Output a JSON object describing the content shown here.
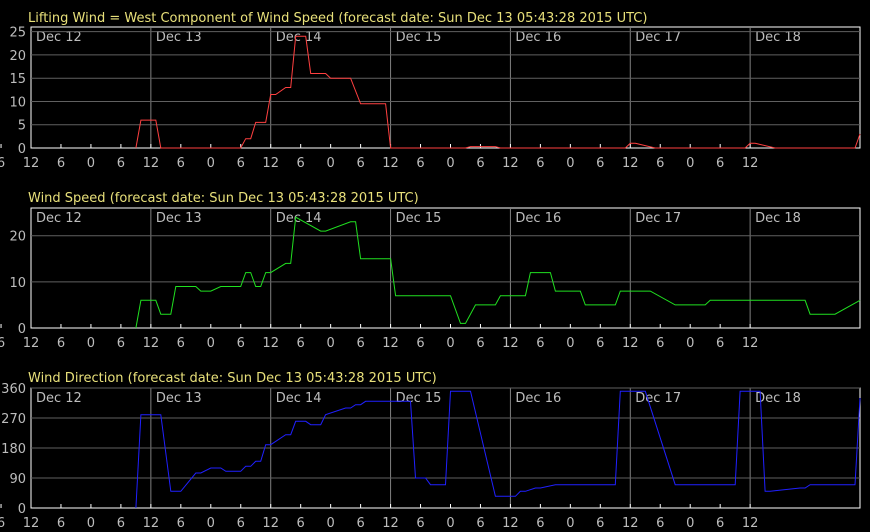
{
  "chart_data": [
    {
      "type": "line",
      "title": "Lifting Wind = West Component of Wind Speed (forecast date: Sun Dec 13 05:43:28 2015 UTC)",
      "color": "#ff4040",
      "ylim": [
        0,
        26
      ],
      "yticks": [
        0,
        5,
        10,
        15,
        20,
        25
      ],
      "xlim": [
        0,
        166
      ],
      "day_labels": [
        "Dec 12",
        "Dec 13",
        "Dec 14",
        "Dec 15",
        "Dec 16",
        "Dec 17",
        "Dec 18"
      ],
      "day_starts": [
        0,
        24,
        48,
        72,
        96,
        120,
        144
      ],
      "x_tick_labels": [
        "6",
        "0",
        "6",
        "12",
        "6",
        "0",
        "6",
        "12",
        "6",
        "0",
        "6",
        "12",
        "6",
        "0",
        "6",
        "12",
        "6",
        "0",
        "6",
        "12",
        "6",
        "0",
        "6",
        "12",
        "6",
        "0",
        "6",
        "12"
      ],
      "x": [
        21,
        22,
        23,
        25,
        26,
        42,
        43,
        44,
        45,
        47,
        48,
        49,
        51,
        52,
        53,
        55,
        56,
        57,
        59,
        60,
        63,
        64,
        66,
        67,
        71,
        72,
        73,
        87,
        88,
        89,
        93,
        94,
        95,
        119,
        120,
        121,
        125,
        126,
        127,
        143,
        144,
        145,
        149,
        150,
        151,
        165,
        166
      ],
      "y": [
        0,
        6,
        6,
        6,
        0,
        0,
        2,
        2,
        5.5,
        5.5,
        11.5,
        11.5,
        13,
        13,
        24,
        24,
        16,
        16,
        16,
        15,
        15,
        15,
        9.5,
        9.5,
        9.5,
        0,
        0,
        0,
        0.3,
        0.3,
        0.3,
        0,
        0,
        0,
        1,
        1,
        0,
        0,
        0,
        0,
        1,
        1,
        0,
        0,
        0,
        0,
        3
      ]
    },
    {
      "type": "line",
      "title": "Wind Speed (forecast date: Sun Dec 13 05:43:28 2015 UTC)",
      "color": "#20e020",
      "ylim": [
        0,
        26
      ],
      "yticks": [
        0,
        10,
        20
      ],
      "xlim": [
        0,
        166
      ],
      "day_labels": [
        "Dec 12",
        "Dec 13",
        "Dec 14",
        "Dec 15",
        "Dec 16",
        "Dec 17",
        "Dec 18"
      ],
      "day_starts": [
        0,
        24,
        48,
        72,
        96,
        120,
        144
      ],
      "x_tick_labels": [
        "6",
        "0",
        "6",
        "12",
        "6",
        "0",
        "6",
        "12",
        "6",
        "0",
        "6",
        "12",
        "6",
        "0",
        "6",
        "12",
        "6",
        "0",
        "6",
        "12",
        "6",
        "0",
        "6",
        "12",
        "6",
        "0",
        "6",
        "12"
      ],
      "x": [
        21,
        22,
        25,
        26,
        28,
        29,
        33,
        34,
        36,
        38,
        39,
        42,
        43,
        44,
        45,
        46,
        47,
        48,
        51,
        52,
        53,
        58,
        59,
        64,
        65,
        66,
        67,
        72,
        73,
        74,
        80,
        81,
        83,
        84,
        86,
        87,
        89,
        90,
        93,
        94,
        95,
        99,
        100,
        104,
        105,
        110,
        111,
        117,
        118,
        123,
        124,
        129,
        130,
        135,
        136,
        148,
        149,
        150,
        154,
        155,
        156,
        160,
        161,
        166
      ],
      "y": [
        0,
        6,
        6,
        3,
        3,
        9,
        9,
        8,
        8,
        9,
        9,
        9,
        12,
        12,
        9,
        9,
        12,
        12,
        14,
        14,
        24,
        21,
        21,
        23,
        23,
        15,
        15,
        15,
        7,
        7,
        7,
        7,
        7,
        7,
        1,
        1,
        5,
        5,
        5,
        7,
        7,
        7,
        12,
        12,
        8,
        8,
        5,
        5,
        8,
        8,
        8,
        5,
        5,
        5,
        6,
        6,
        6,
        6,
        6,
        6,
        3,
        3,
        3,
        6
      ]
    },
    {
      "type": "line",
      "title": "Wind Direction (forecast date: Sun Dec 13 05:43:28 2015 UTC)",
      "color": "#2020ff",
      "ylim": [
        0,
        360
      ],
      "yticks": [
        0,
        90,
        180,
        270,
        360
      ],
      "xlim": [
        0,
        166
      ],
      "day_labels": [
        "Dec 12",
        "Dec 13",
        "Dec 14",
        "Dec 15",
        "Dec 16",
        "Dec 17",
        "Dec 18"
      ],
      "day_starts": [
        0,
        24,
        48,
        72,
        96,
        120,
        144
      ],
      "x_tick_labels": [
        "6",
        "0",
        "6",
        "12",
        "6",
        "0",
        "6",
        "12",
        "6",
        "0",
        "6",
        "12",
        "6",
        "0",
        "6",
        "12",
        "6",
        "0",
        "6",
        "12",
        "6",
        "0",
        "6",
        "12",
        "6",
        "0",
        "6",
        "12"
      ],
      "x": [
        21,
        22,
        25,
        26,
        28,
        29,
        30,
        33,
        34,
        36,
        38,
        39,
        42,
        43,
        44,
        45,
        46,
        47,
        48,
        51,
        52,
        53,
        55,
        56,
        58,
        59,
        63,
        64,
        65,
        66,
        67,
        76,
        77,
        79,
        80,
        83,
        84,
        87,
        88,
        93,
        94,
        97,
        98,
        99,
        101,
        102,
        105,
        106,
        108,
        109,
        111,
        117,
        118,
        122,
        123,
        129,
        130,
        133,
        134,
        141,
        142,
        145,
        146,
        147,
        148,
        154,
        155,
        156,
        165,
        166
      ],
      "y": [
        0,
        280,
        280,
        280,
        50,
        50,
        50,
        105,
        105,
        120,
        120,
        110,
        110,
        125,
        125,
        140,
        140,
        190,
        190,
        220,
        220,
        260,
        260,
        250,
        250,
        280,
        300,
        300,
        310,
        310,
        320,
        320,
        90,
        90,
        70,
        70,
        350,
        350,
        350,
        35,
        35,
        35,
        50,
        50,
        60,
        60,
        70,
        70,
        70,
        70,
        70,
        70,
        350,
        350,
        350,
        70,
        70,
        70,
        70,
        70,
        350,
        350,
        350,
        50,
        50,
        60,
        60,
        70,
        70,
        330
      ]
    }
  ]
}
